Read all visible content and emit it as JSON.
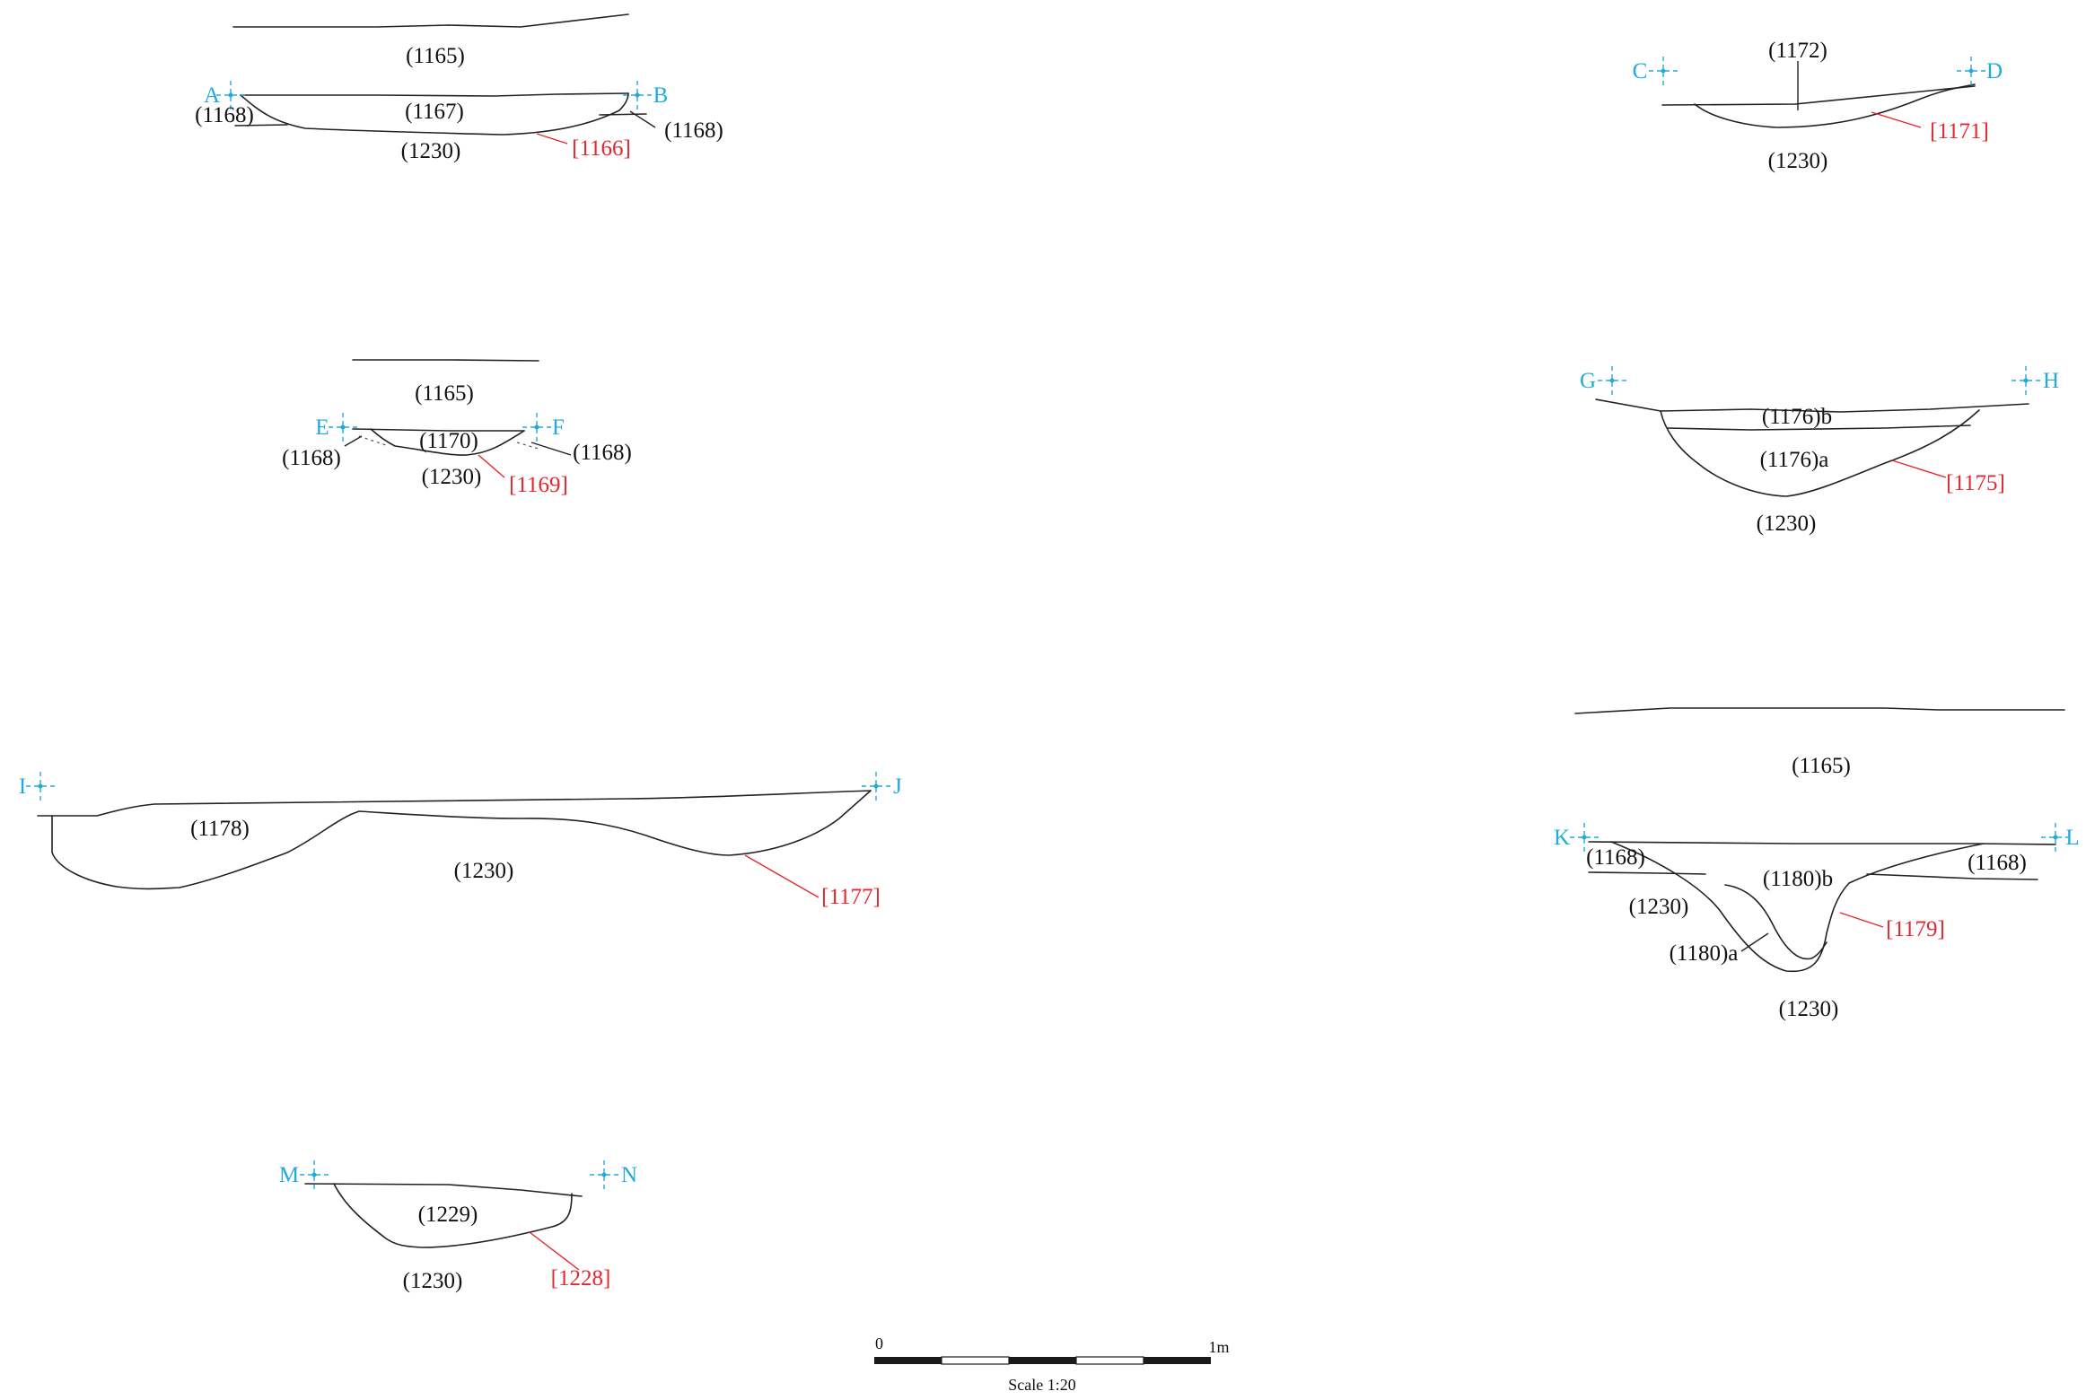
{
  "colors": {
    "ink": "#222222",
    "cut": "#e8262e",
    "marker": "#22aadd",
    "background": "#ffffff"
  },
  "sections": {
    "ab": {
      "start": "A",
      "end": "B",
      "top": "(1165)",
      "fill": "(1167)",
      "left_layer": "(1168)",
      "right_layer": "(1168)",
      "below": "(1230)",
      "cut": "[1166]"
    },
    "cd": {
      "start": "C",
      "end": "D",
      "fill": "(1172)",
      "below": "(1230)",
      "cut": "[1171]"
    },
    "ef": {
      "start": "E",
      "end": "F",
      "top": "(1165)",
      "fill": "(1170)",
      "left_layer": "(1168)",
      "right_layer": "(1168)",
      "below": "(1230)",
      "cut": "[1169]"
    },
    "gh": {
      "start": "G",
      "end": "H",
      "upper_fill": "(1176)b",
      "lower_fill": "(1176)a",
      "below": "(1230)",
      "cut": "[1175]"
    },
    "ij": {
      "start": "I",
      "end": "J",
      "fill": "(1178)",
      "below": "(1230)",
      "cut": "[1177]"
    },
    "kl": {
      "start": "K",
      "end": "L",
      "top": "(1165)",
      "left_layer": "(1168)",
      "right_layer": "(1168)",
      "upper_fill": "(1180)b",
      "lower_fill": "(1180)a",
      "side": "(1230)",
      "below": "(1230)",
      "cut": "[1179]"
    },
    "mn": {
      "start": "M",
      "end": "N",
      "fill": "(1229)",
      "below": "(1230)",
      "cut": "[1228]"
    }
  },
  "scale_bar": {
    "start_label": "0",
    "end_label": "1m",
    "caption": "Scale 1:20"
  }
}
